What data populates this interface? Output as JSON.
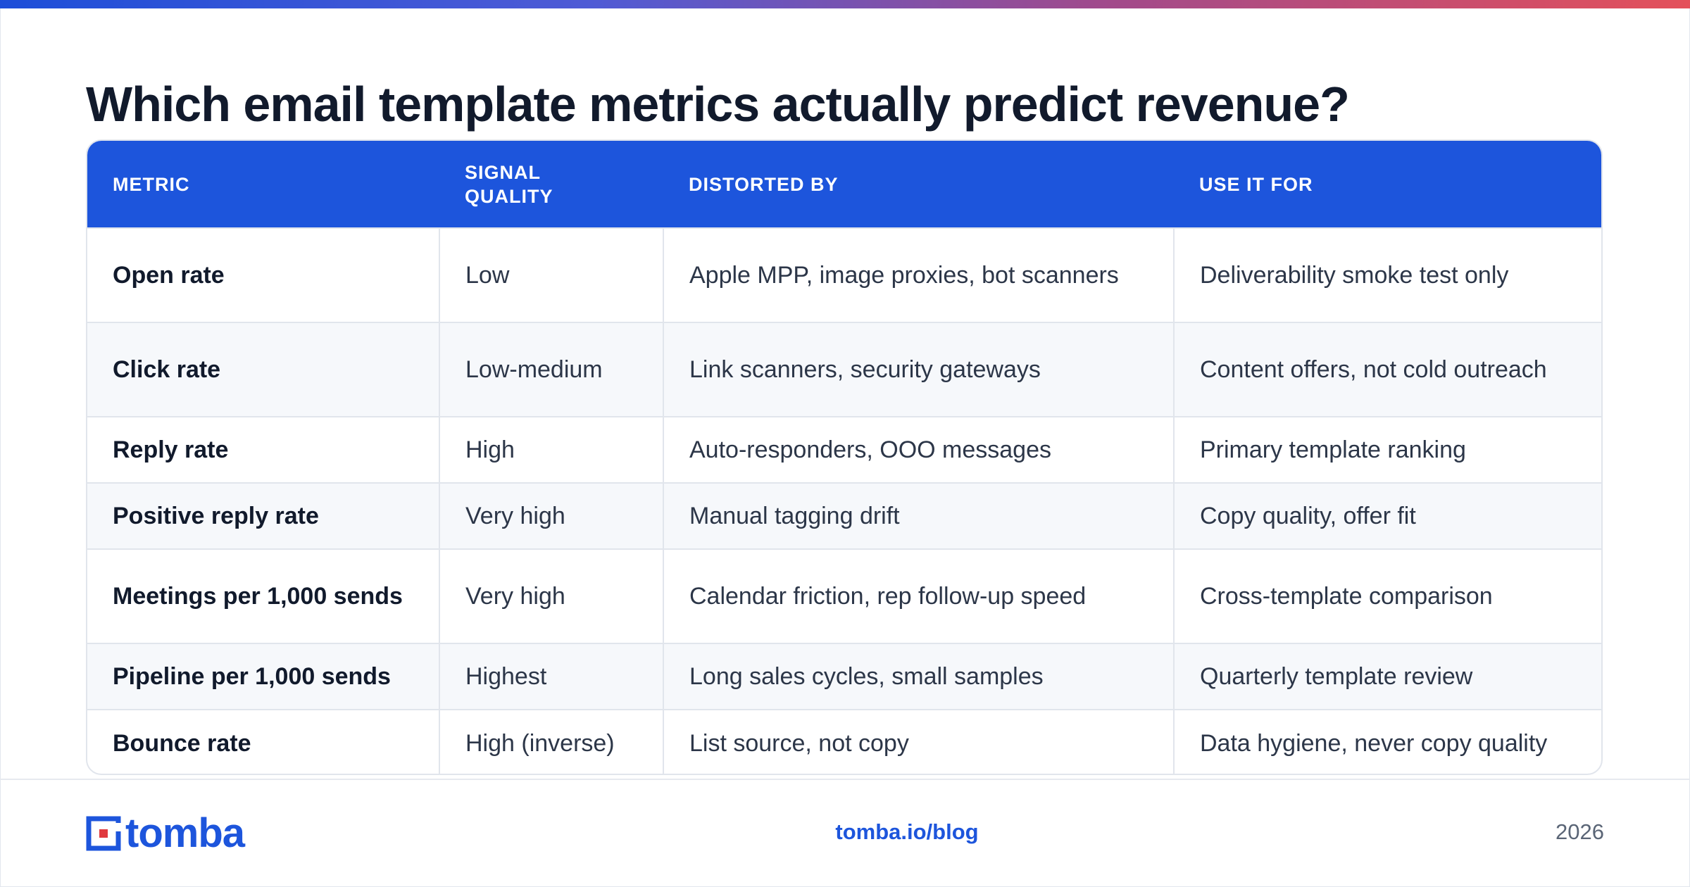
{
  "title": "Which email template metrics actually predict revenue?",
  "table": {
    "headers": [
      "METRIC",
      "SIGNAL\nQUALITY",
      "DISTORTED BY",
      "USE IT FOR"
    ],
    "rows": [
      [
        "Open rate",
        "Low",
        "Apple MPP, image proxies, bot scanners",
        "Deliverability smoke test only"
      ],
      [
        "Click rate",
        "Low-medium",
        "Link scanners, security gateways",
        "Content offers, not cold outreach"
      ],
      [
        "Reply rate",
        "High",
        "Auto-responders, OOO messages",
        "Primary template ranking"
      ],
      [
        "Positive reply rate",
        "Very high",
        "Manual tagging drift",
        "Copy quality, offer fit"
      ],
      [
        "Meetings per 1,000 sends",
        "Very high",
        "Calendar friction, rep follow-up speed",
        "Cross-template comparison"
      ],
      [
        "Pipeline per 1,000 sends",
        "Highest",
        "Long sales cycles, small samples",
        "Quarterly template review"
      ],
      [
        "Bounce rate",
        "High (inverse)",
        "List source, not copy",
        "Data hygiene, never copy quality"
      ]
    ]
  },
  "footer": {
    "logo_text": "tomba",
    "link": "tomba.io/blog",
    "year": "2026"
  },
  "colors": {
    "accent": "#1d55dc",
    "logo_red": "#e0393e",
    "gradient": [
      "#1d4ed8",
      "#e4505a"
    ]
  },
  "icons": {
    "logo": "tomba-logo-icon"
  }
}
